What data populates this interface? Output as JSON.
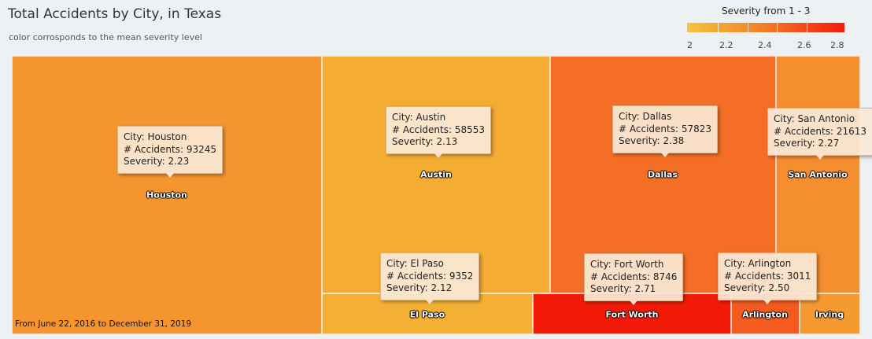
{
  "chart_data": {
    "type": "treemap",
    "title": "Total Accidents by City, in Texas",
    "subtitle": "color corrosponds to the mean severity level",
    "legend": {
      "title": "Severity from 1 - 3",
      "ticks": [
        "2",
        "2.2",
        "2.4",
        "2.6",
        "2.8"
      ],
      "range": [
        2,
        2.8
      ],
      "colors": [
        "#f4c43c",
        "#f41a08"
      ]
    },
    "tooltip_labels": {
      "city": "City: ",
      "accidents": "# Accidents: ",
      "severity": "Severity: "
    },
    "cities": [
      {
        "name": "Houston",
        "accidents": 93245,
        "severity": 2.23,
        "color": "#f5952f",
        "tooltip": true
      },
      {
        "name": "Austin",
        "accidents": 58553,
        "severity": 2.13,
        "color": "#f4ac33",
        "tooltip": true
      },
      {
        "name": "El Paso",
        "accidents": 9352,
        "severity": 2.12,
        "color": "#f4b034",
        "tooltip": true
      },
      {
        "name": "Dallas",
        "accidents": 57823,
        "severity": 2.38,
        "color": "#f56e25",
        "tooltip": true
      },
      {
        "name": "Fort Worth",
        "accidents": 8746,
        "severity": 2.71,
        "color": "#f41a09",
        "tooltip": true
      },
      {
        "name": "Arlington",
        "accidents": 3011,
        "severity": 2.5,
        "color": "#f45c1f",
        "tooltip": true
      },
      {
        "name": "San Antonio",
        "accidents": 21613,
        "severity": 2.27,
        "color": "#f58e2f",
        "tooltip": true
      },
      {
        "name": "Irving",
        "accidents": null,
        "severity": null,
        "color": "#f59a31",
        "tooltip": false
      }
    ],
    "footnote": "From June 22, 2016 to December 31, 2019"
  }
}
